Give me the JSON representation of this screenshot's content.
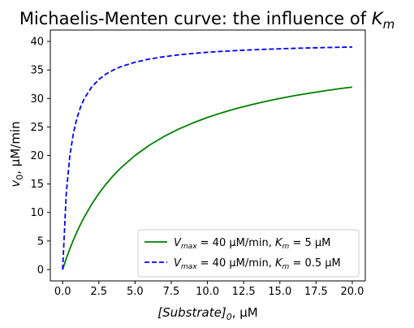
{
  "chart_data": {
    "type": "line",
    "title": {
      "prefix": "Michaelis-Menten curve: the influence of ",
      "symbol": "K",
      "sub": "m"
    },
    "xlabel": {
      "main": "[Substrate]",
      "sub": "0",
      "unit": ", µM"
    },
    "ylabel": {
      "main": "v",
      "sub": "0",
      "unit": ", µM/min"
    },
    "xlim": [
      -0.85,
      20.9
    ],
    "ylim": [
      -2,
      42
    ],
    "xticks": [
      0,
      2.5,
      5,
      7.5,
      10,
      12.5,
      15,
      17.5,
      20
    ],
    "xtick_labels": [
      "0.0",
      "2.5",
      "5.0",
      "7.5",
      "10.0",
      "12.5",
      "15.0",
      "17.5",
      "20.0"
    ],
    "yticks": [
      0,
      5,
      10,
      15,
      20,
      25,
      30,
      35,
      40
    ],
    "ytick_labels": [
      "0",
      "5",
      "10",
      "15",
      "20",
      "25",
      "30",
      "35",
      "40"
    ],
    "grid": false,
    "legend_position": "lower-right",
    "x": [
      0,
      0.25,
      0.5,
      0.75,
      1,
      1.25,
      1.5,
      2,
      2.5,
      3,
      3.5,
      4,
      5,
      6,
      7,
      8,
      9,
      10,
      11,
      12,
      13,
      14,
      15,
      16,
      17,
      18,
      19,
      20
    ],
    "series": [
      {
        "legend": {
          "v": "V",
          "vsub": "max",
          "mid": " = 40 µM/min, ",
          "k": "K",
          "ksub": "m",
          "end": " = 5 µM"
        },
        "color": "#008000",
        "style": "solid",
        "values": [
          0,
          1.9,
          3.64,
          5.22,
          6.67,
          8.0,
          9.23,
          11.43,
          13.33,
          15.0,
          16.47,
          17.78,
          20.0,
          21.82,
          23.33,
          24.62,
          25.71,
          26.67,
          27.5,
          28.24,
          28.89,
          29.47,
          30.0,
          30.48,
          30.91,
          31.3,
          31.67,
          32.0
        ]
      },
      {
        "legend": {
          "v": "V",
          "vsub": "max",
          "mid": " = 40 µM/min, ",
          "k": "K",
          "ksub": "m",
          "end": " = 0.5 µM"
        },
        "color": "#0000ff",
        "style": "dashed",
        "values": [
          0,
          13.33,
          20.0,
          24.0,
          26.67,
          28.57,
          30.0,
          32.0,
          33.33,
          34.29,
          35.0,
          35.56,
          36.36,
          36.92,
          37.33,
          37.65,
          37.89,
          38.1,
          38.26,
          38.4,
          38.52,
          38.62,
          38.71,
          38.79,
          38.86,
          38.92,
          38.97,
          39.02
        ]
      }
    ]
  }
}
